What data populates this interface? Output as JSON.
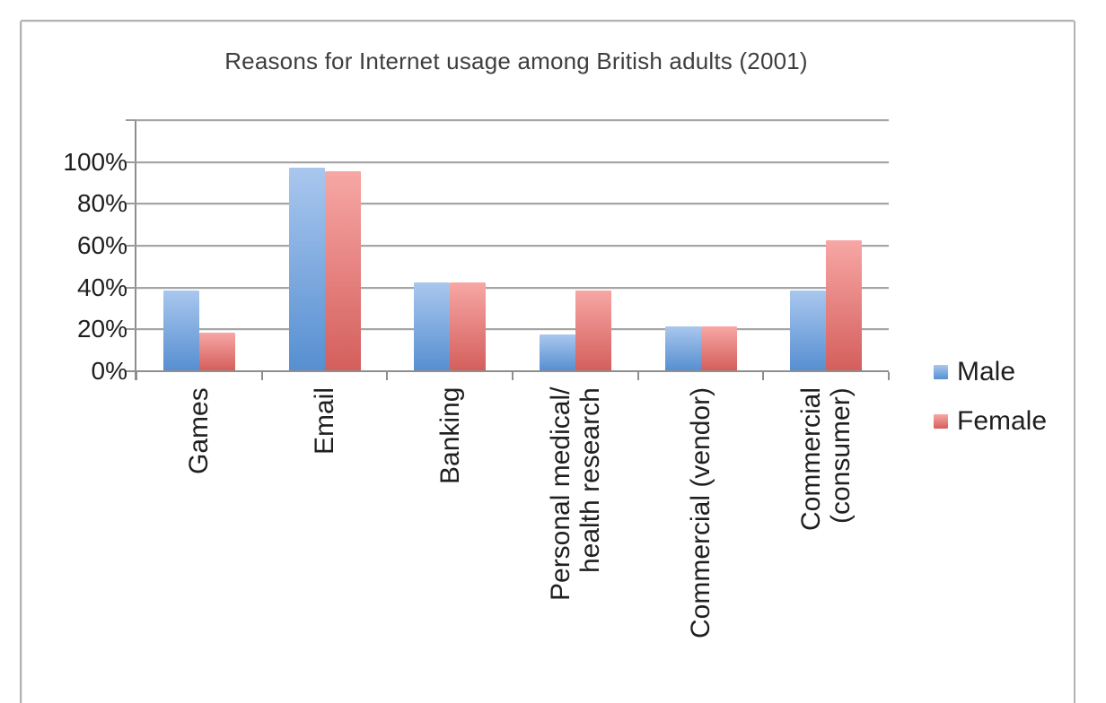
{
  "chart_data": {
    "type": "bar",
    "title": "Reasons for Internet usage among British adults (2001)",
    "categories": [
      "Games",
      "Email",
      "Banking",
      "Personal medical/\nhealth research",
      "Commercial (vendor)",
      "Commercial\n(consumer)"
    ],
    "series": [
      {
        "name": "Male",
        "values": [
          38,
          97,
          42,
          17,
          21,
          38
        ],
        "gradient_top": "#a9c7ee",
        "gradient_bottom": "#578fd1"
      },
      {
        "name": "Female",
        "values": [
          18,
          95,
          42,
          38,
          21,
          62
        ],
        "gradient_top": "#f7a7a5",
        "gradient_bottom": "#d45f5c"
      }
    ],
    "yticks": [
      "0%",
      "20%",
      "40%",
      "60%",
      "80%",
      "100%"
    ],
    "ytick_step_pct": 20,
    "ylim": [
      0,
      120
    ],
    "xlabel": "",
    "ylabel": "",
    "grid": true,
    "grid_color": "#a5a5a5",
    "axis_color": "#8e8e8e",
    "text_color": "#1f1f1f",
    "title_color": "#3e3e3e",
    "frame_border_color": "#b2b2b2",
    "legend_position": "right",
    "legend_entries": [
      "Male",
      "Female"
    ]
  }
}
